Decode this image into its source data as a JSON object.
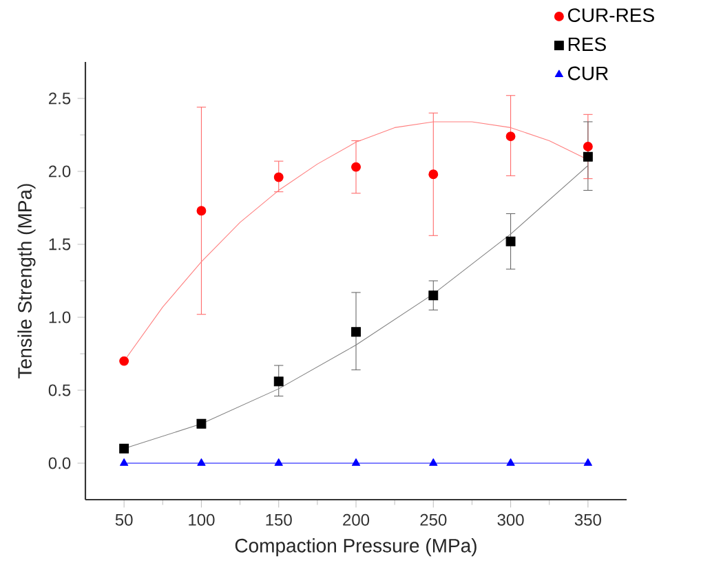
{
  "chart_data": {
    "type": "scatter",
    "xlabel": "Compaction Pressure (MPa)",
    "ylabel": "Tensile Strength (MPa)",
    "x": [
      50,
      100,
      150,
      200,
      250,
      300,
      350
    ],
    "xlim": [
      25,
      375
    ],
    "xticks": [
      50,
      100,
      150,
      200,
      250,
      300,
      350
    ],
    "ylim": [
      -0.25,
      2.75
    ],
    "yticks": [
      {
        "value": 0,
        "label": "0.0"
      },
      {
        "value": 0.5,
        "label": "0.5"
      },
      {
        "value": 1,
        "label": "1.0"
      },
      {
        "value": 1.5,
        "label": "1.5"
      },
      {
        "value": 2,
        "label": "2.0"
      },
      {
        "value": 2.5,
        "label": "2.5"
      }
    ],
    "grid": false,
    "legend": "top right",
    "series": [
      {
        "name": "CUR-RES",
        "marker": "circle",
        "color": "#ff0000",
        "values": [
          0.7,
          1.73,
          1.96,
          2.03,
          1.98,
          2.24,
          2.17
        ],
        "errors": [
          null,
          [
            1.02,
            2.44
          ],
          [
            1.86,
            2.07
          ],
          [
            1.85,
            2.21
          ],
          [
            1.56,
            2.4
          ],
          [
            1.97,
            2.52
          ],
          [
            1.95,
            2.39
          ]
        ]
      },
      {
        "name": "RES",
        "marker": "square",
        "color": "#000000",
        "values": [
          0.1,
          0.27,
          0.56,
          0.9,
          1.15,
          1.52,
          2.1
        ],
        "errors": [
          null,
          [
            0.25,
            0.3
          ],
          [
            0.46,
            0.67
          ],
          [
            0.64,
            1.17
          ],
          [
            1.05,
            1.25
          ],
          [
            1.33,
            1.71
          ],
          [
            1.87,
            2.34
          ]
        ]
      },
      {
        "name": "CUR",
        "type": "line",
        "marker": "triangle",
        "color": "#0000ff",
        "values": [
          0,
          0,
          0,
          0,
          0,
          0,
          0
        ]
      },
      {
        "type": "line",
        "marker": "none",
        "color": "#ff7f7f",
        "x": [
          50,
          75,
          100,
          125,
          150,
          175,
          200,
          225,
          250,
          275,
          300,
          325,
          350
        ],
        "values": [
          0.7,
          1.07,
          1.38,
          1.65,
          1.87,
          2.05,
          2.2,
          2.3,
          2.34,
          2.34,
          2.3,
          2.21,
          2.08
        ]
      },
      {
        "type": "line",
        "marker": "none",
        "color": "#808080",
        "x": [
          50,
          100,
          150,
          200,
          250,
          300,
          350
        ],
        "values": [
          0.1,
          0.27,
          0.51,
          0.81,
          1.16,
          1.57,
          2.04
        ]
      }
    ]
  }
}
